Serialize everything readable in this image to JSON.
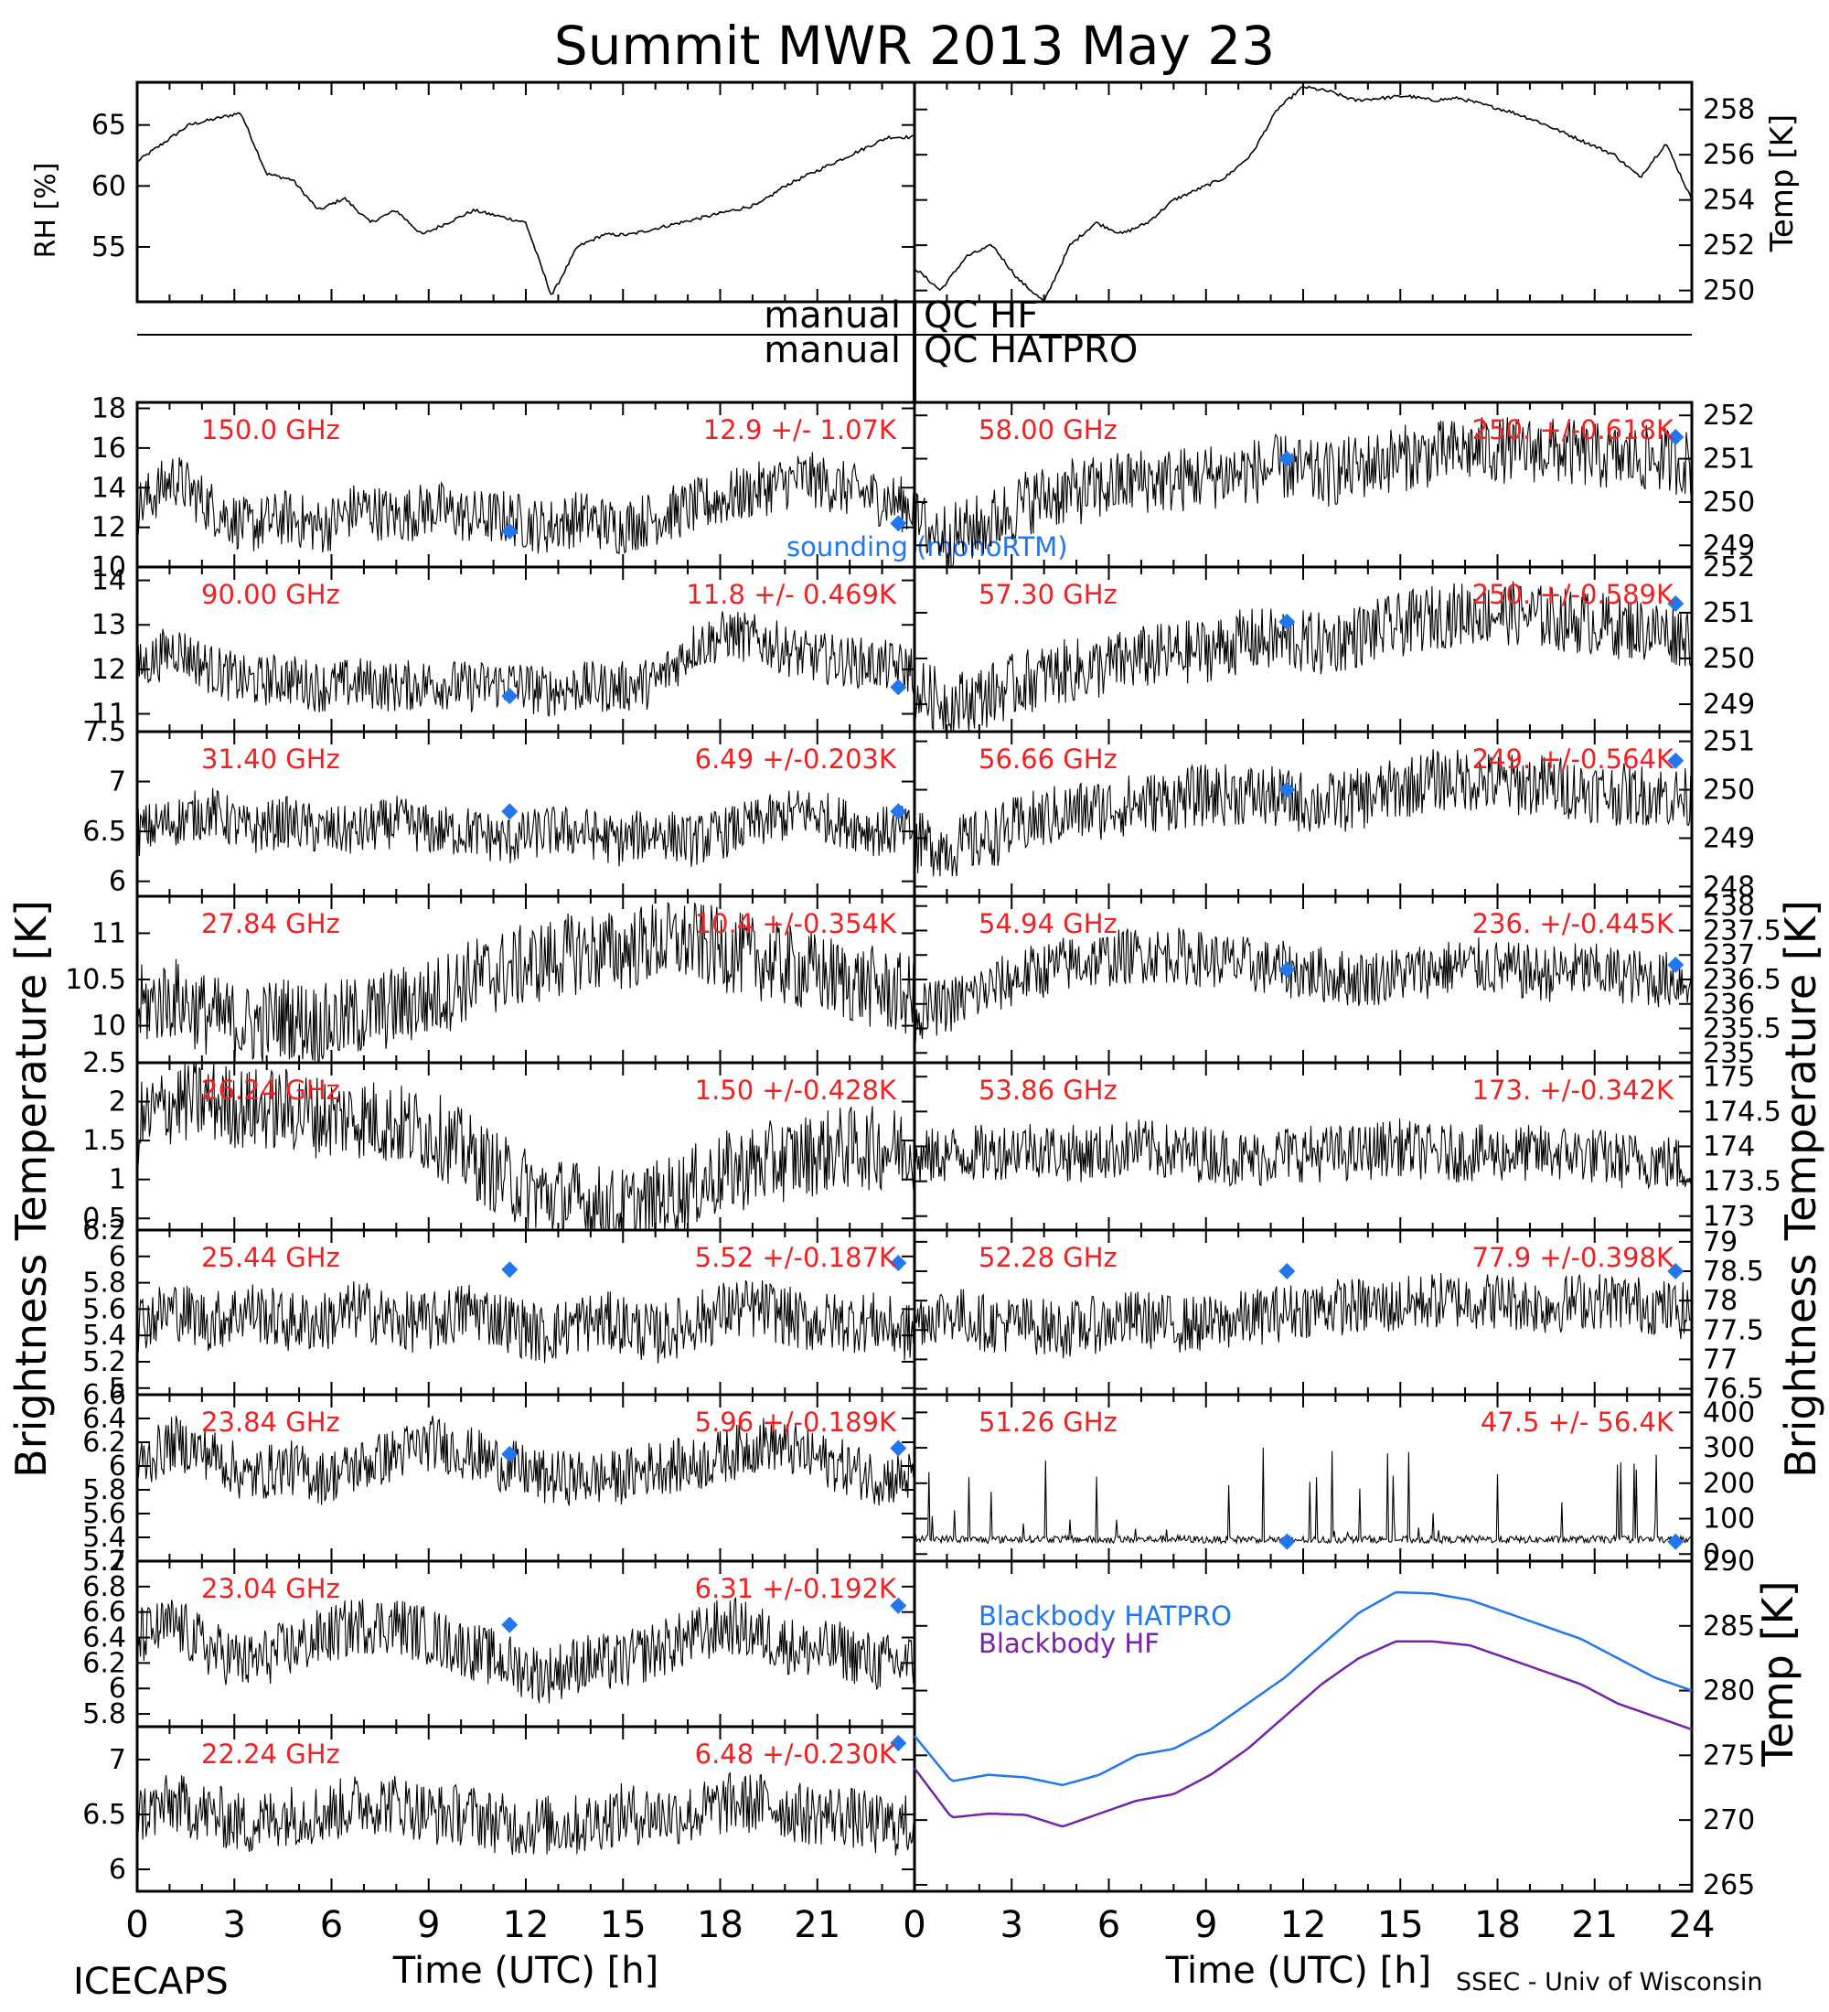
{
  "title": "Summit MWR 2013 May 23",
  "left_ylabel": "Brightness Temperature [K]",
  "right_ylabel": "Brightness Temperature [K]",
  "xlabel": "Time (UTC) [h]",
  "footer_left": "ICECAPS",
  "footer_right": "SSEC - Univ of Wisconsin",
  "qc_labels": [
    {
      "left": "manual",
      "right": "QC HF"
    },
    {
      "left": "manual",
      "right": "QC HATPRO"
    }
  ],
  "x_ticks": [
    "0",
    "3",
    "6",
    "9",
    "12",
    "15",
    "18",
    "21",
    "24"
  ],
  "x_ticks_left": [
    "0",
    "3",
    "6",
    "9",
    "12",
    "15",
    "18",
    "21"
  ],
  "colors": {
    "red": "#ee2222",
    "blue": "#2277ee",
    "purple": "#7722aa",
    "data": "#000000"
  },
  "chart_data": [
    {
      "type": "line",
      "id": "rh",
      "ylabel": "RH [%]",
      "ylim": [
        50.5,
        68.5
      ],
      "yticks": [
        55,
        60,
        65
      ],
      "series": [
        {
          "values": [
            62,
            63.5,
            65,
            65.5,
            66,
            61,
            60.5,
            58,
            59,
            57,
            58,
            56,
            57,
            58,
            57.5,
            57,
            51,
            55,
            56,
            56,
            56.5,
            57,
            57.5,
            58,
            58.5,
            60,
            61,
            62,
            63,
            64,
            64
          ]
        }
      ]
    },
    {
      "type": "line",
      "id": "temp",
      "ylabel": "Temp [K]",
      "ylim": [
        249.5,
        259.2
      ],
      "yticks": [
        250,
        252,
        254,
        256,
        258
      ],
      "series": [
        {
          "values": [
            251,
            250,
            251.5,
            252,
            250.5,
            249.5,
            252,
            253,
            252.5,
            253,
            254,
            254.5,
            255,
            256,
            258,
            259,
            258.8,
            258.4,
            258.5,
            258.6,
            258.4,
            258.5,
            258.2,
            257.9,
            257.5,
            257,
            256.5,
            256,
            255,
            256.5,
            254
          ]
        }
      ]
    },
    {
      "type": "line",
      "id": "ch150",
      "freq": "150.0 GHz",
      "stats": "12.9 +/- 1.07K",
      "ylim": [
        10,
        18.3
      ],
      "yticks": [
        10,
        12,
        14,
        16,
        18
      ],
      "noise": 1.1,
      "series": [
        {
          "values": [
            13,
            14.5,
            13,
            12,
            12.5,
            12,
            13,
            12.5,
            13,
            12.5,
            12.5,
            12,
            12.5,
            12,
            12.5,
            13,
            13.5,
            14,
            14.5,
            14,
            13.5,
            13
          ]
        }
      ],
      "sounding": [
        [
          11.5,
          11.8
        ],
        [
          23.5,
          12.2
        ]
      ],
      "legend_text": "sounding (monoRTM)"
    },
    {
      "type": "line",
      "id": "ch90",
      "freq": "90.00 GHz",
      "stats": "11.8 +/- 0.469K",
      "ylim": [
        10.6,
        14.3
      ],
      "yticks": [
        11,
        12,
        13,
        14
      ],
      "noise": 0.45,
      "series": [
        {
          "values": [
            12,
            12.5,
            12,
            11.7,
            11.8,
            11.6,
            11.7,
            11.6,
            11.7,
            11.6,
            11.7,
            11.5,
            11.6,
            11.6,
            11.7,
            12.5,
            12.8,
            12.6,
            12.3,
            12.2,
            12.1,
            12
          ]
        }
      ],
      "sounding": [
        [
          11.5,
          11.4
        ],
        [
          23.5,
          11.6
        ]
      ]
    },
    {
      "type": "line",
      "id": "ch31",
      "freq": "31.40 GHz",
      "stats": "6.49 +/-0.203K",
      "ylim": [
        5.85,
        7.5
      ],
      "yticks": [
        6.0,
        6.5,
        7.0,
        7.5
      ],
      "noise": 0.2,
      "series": [
        {
          "values": [
            6.5,
            6.6,
            6.7,
            6.5,
            6.6,
            6.5,
            6.5,
            6.6,
            6.5,
            6.5,
            6.4,
            6.5,
            6.5,
            6.4,
            6.5,
            6.4,
            6.5,
            6.6,
            6.7,
            6.6,
            6.5,
            6.5
          ]
        }
      ],
      "sounding": [
        [
          11.5,
          6.7
        ],
        [
          23.5,
          6.7
        ]
      ]
    },
    {
      "type": "line",
      "id": "ch27",
      "freq": "27.84 GHz",
      "stats": "10.4 +/-0.354K",
      "ylim": [
        9.6,
        11.4
      ],
      "yticks": [
        10.0,
        10.5,
        11.0
      ],
      "noise": 0.35,
      "series": [
        {
          "values": [
            10.2,
            10.3,
            10.1,
            10,
            10.1,
            10,
            10.1,
            10.2,
            10.3,
            10.5,
            10.6,
            10.7,
            10.8,
            10.8,
            10.9,
            10.9,
            10.8,
            10.7,
            10.6,
            10.5,
            10.4,
            10.3
          ]
        }
      ]
    },
    {
      "type": "line",
      "id": "ch26",
      "freq": "26.24 GHz",
      "stats": "1.50 +/-0.428K",
      "ylim": [
        0.35,
        2.5
      ],
      "yticks": [
        0.5,
        1.0,
        1.5,
        2.0,
        2.5
      ],
      "noise": 0.42,
      "series": [
        {
          "values": [
            1.7,
            2.0,
            2.0,
            1.9,
            1.9,
            1.8,
            1.8,
            1.7,
            1.6,
            1.3,
            1.0,
            0.8,
            0.7,
            0.6,
            0.7,
            0.9,
            1.1,
            1.2,
            1.3,
            1.4,
            1.4,
            1.4
          ]
        }
      ]
    },
    {
      "type": "line",
      "id": "ch25",
      "freq": "25.44 GHz",
      "stats": "5.52 +/-0.187K",
      "ylim": [
        4.95,
        6.2
      ],
      "yticks": [
        5.0,
        5.2,
        5.4,
        5.6,
        5.8,
        6.0,
        6.2
      ],
      "noise": 0.18,
      "series": [
        {
          "values": [
            5.5,
            5.6,
            5.5,
            5.6,
            5.5,
            5.5,
            5.6,
            5.5,
            5.5,
            5.6,
            5.5,
            5.4,
            5.5,
            5.5,
            5.4,
            5.5,
            5.6,
            5.6,
            5.5,
            5.5,
            5.5,
            5.4
          ]
        }
      ],
      "sounding": [
        [
          11.5,
          5.9
        ],
        [
          23.5,
          5.95
        ]
      ]
    },
    {
      "type": "line",
      "id": "ch23a",
      "freq": "23.84 GHz",
      "stats": "5.96 +/-0.189K",
      "ylim": [
        5.2,
        6.6
      ],
      "yticks": [
        5.2,
        5.4,
        5.6,
        5.8,
        6.0,
        6.2,
        6.4,
        6.6
      ],
      "noise": 0.18,
      "series": [
        {
          "values": [
            6.0,
            6.2,
            6.1,
            5.9,
            6.0,
            5.9,
            6.0,
            6.1,
            6.2,
            6.1,
            6.0,
            5.9,
            5.9,
            5.9,
            6.0,
            6.0,
            6.1,
            6.2,
            6.1,
            6.0,
            5.9,
            5.9
          ]
        }
      ],
      "sounding": [
        [
          11.5,
          6.1
        ],
        [
          23.5,
          6.15
        ]
      ]
    },
    {
      "type": "line",
      "id": "ch23b",
      "freq": "23.04 GHz",
      "stats": "6.31 +/-0.192K",
      "ylim": [
        5.7,
        7.0
      ],
      "yticks": [
        5.8,
        6.0,
        6.2,
        6.4,
        6.6,
        6.8,
        7.0
      ],
      "noise": 0.18,
      "series": [
        {
          "values": [
            6.4,
            6.5,
            6.3,
            6.2,
            6.3,
            6.4,
            6.5,
            6.5,
            6.4,
            6.3,
            6.2,
            6.1,
            6.2,
            6.2,
            6.3,
            6.4,
            6.5,
            6.4,
            6.3,
            6.3,
            6.2,
            6.2
          ]
        }
      ],
      "sounding": [
        [
          11.5,
          6.5
        ],
        [
          23.5,
          6.65
        ]
      ]
    },
    {
      "type": "line",
      "id": "ch22",
      "freq": "22.24 GHz",
      "stats": "6.48 +/-0.230K",
      "ylim": [
        5.8,
        7.3
      ],
      "yticks": [
        6.0,
        6.5,
        7.0
      ],
      "noise": 0.22,
      "series": [
        {
          "values": [
            6.5,
            6.6,
            6.5,
            6.4,
            6.5,
            6.5,
            6.6,
            6.6,
            6.5,
            6.5,
            6.4,
            6.4,
            6.4,
            6.5,
            6.5,
            6.5,
            6.6,
            6.6,
            6.5,
            6.5,
            6.4,
            6.4
          ]
        }
      ],
      "sounding": [
        [
          23.5,
          7.15
        ]
      ]
    },
    {
      "type": "line",
      "id": "ch58",
      "freq": "58.00 GHz",
      "stats": "250. +/-0.618K",
      "ylim": [
        248.5,
        252.3
      ],
      "yticks": [
        249,
        250,
        251,
        252
      ],
      "noise": 0.6,
      "series": [
        {
          "values": [
            249.5,
            249.2,
            249.5,
            250,
            250.2,
            250.3,
            250.5,
            250.5,
            250.6,
            250.7,
            250.8,
            250.6,
            250.8,
            251,
            251.1,
            251.2,
            251.2,
            251.2,
            251.1,
            251,
            251,
            250.9
          ]
        }
      ],
      "sounding": [
        [
          11.5,
          251
        ],
        [
          23.5,
          251.5
        ]
      ]
    },
    {
      "type": "line",
      "id": "ch57",
      "freq": "57.30 GHz",
      "stats": "250. +/-0.589K",
      "ylim": [
        248.4,
        252
      ],
      "yticks": [
        249,
        250,
        251,
        252
      ],
      "noise": 0.55,
      "series": [
        {
          "values": [
            249.3,
            249,
            249.2,
            249.5,
            249.7,
            249.8,
            250,
            250.1,
            250.2,
            250.4,
            250.4,
            250.3,
            250.5,
            250.7,
            250.9,
            251,
            251,
            250.9,
            250.8,
            250.7,
            250.6,
            250.5
          ]
        }
      ],
      "sounding": [
        [
          11.5,
          250.8
        ],
        [
          23.5,
          251.2
        ]
      ]
    },
    {
      "type": "line",
      "id": "ch56",
      "freq": "56.66 GHz",
      "stats": "249. +/-0.564K",
      "ylim": [
        247.8,
        251.2
      ],
      "yticks": [
        248,
        249,
        250,
        251
      ],
      "noise": 0.5,
      "series": [
        {
          "values": [
            248.9,
            248.8,
            249,
            249.3,
            249.5,
            249.6,
            249.7,
            249.8,
            249.9,
            249.9,
            249.8,
            249.7,
            249.8,
            250,
            250.2,
            250.2,
            250.1,
            250.1,
            250,
            249.9,
            249.9,
            249.8
          ]
        }
      ],
      "sounding": [
        [
          11.5,
          250
        ],
        [
          23.5,
          250.6
        ]
      ]
    },
    {
      "type": "line",
      "id": "ch54",
      "freq": "54.94 GHz",
      "stats": "236. +/-0.445K",
      "ylim": [
        234.8,
        238.2
      ],
      "yticks": [
        235.0,
        235.5,
        236.0,
        236.5,
        237.0,
        237.5,
        238.0
      ],
      "noise": 0.45,
      "series": [
        {
          "values": [
            235.8,
            236,
            236.3,
            236.6,
            236.8,
            236.9,
            237,
            237,
            236.9,
            236.8,
            236.7,
            236.6,
            236.5,
            236.6,
            236.7,
            236.8,
            236.7,
            236.6,
            236.7,
            236.6,
            236.5,
            236.5
          ]
        }
      ],
      "sounding": [
        [
          11.5,
          236.7
        ],
        [
          23.5,
          236.8
        ]
      ]
    },
    {
      "type": "line",
      "id": "ch53",
      "freq": "53.86 GHz",
      "stats": "173. +/-0.342K",
      "ylim": [
        172.8,
        175.2
      ],
      "yticks": [
        173.0,
        173.5,
        174.0,
        174.5,
        175.0
      ],
      "noise": 0.32,
      "series": [
        {
          "values": [
            173.8,
            173.9,
            173.9,
            174,
            173.9,
            173.9,
            174,
            173.9,
            173.9,
            173.8,
            173.9,
            173.9,
            173.9,
            174,
            173.9,
            173.9,
            173.9,
            173.9,
            173.9,
            173.8,
            173.8,
            173.7
          ]
        }
      ]
    },
    {
      "type": "line",
      "id": "ch52",
      "freq": "52.28 GHz",
      "stats": "77.9 +/-0.398K",
      "ylim": [
        76.4,
        79.2
      ],
      "yticks": [
        76.5,
        77.0,
        77.5,
        78.0,
        78.5,
        79.0
      ],
      "noise": 0.38,
      "series": [
        {
          "values": [
            77.7,
            77.8,
            77.6,
            77.6,
            77.5,
            77.6,
            77.7,
            77.6,
            77.6,
            77.7,
            77.8,
            77.9,
            77.9,
            77.9,
            78,
            78,
            78,
            77.9,
            78,
            78,
            77.9,
            77.8
          ]
        }
      ],
      "sounding": [
        [
          11.5,
          78.5
        ],
        [
          23.5,
          78.5
        ]
      ]
    },
    {
      "type": "line",
      "id": "ch51",
      "freq": "51.26 GHz",
      "stats": "47.5 +/- 56.4K",
      "ylim": [
        -20,
        450
      ],
      "yticks": [
        0,
        100,
        200,
        300,
        400
      ],
      "noise": 8,
      "series": [
        {
          "values": [
            45,
            42,
            40,
            43,
            42,
            40,
            41,
            43,
            40,
            42,
            41,
            40,
            42,
            41,
            40,
            42,
            41,
            40,
            41,
            42,
            41,
            40
          ]
        }
      ],
      "sounding": [
        [
          11.5,
          35
        ],
        [
          23.5,
          35
        ]
      ]
    },
    {
      "type": "line",
      "id": "bb",
      "ylabel": "Temp [K]",
      "ylim": [
        264.5,
        290
      ],
      "yticks": [
        265,
        270,
        275,
        280,
        285,
        290
      ],
      "legend": [
        {
          "name": "Blackbody HATPRO",
          "color": "#2277ee"
        },
        {
          "name": "Blackbody HF",
          "color": "#7722aa"
        }
      ],
      "series": [
        {
          "name": "Blackbody HATPRO",
          "values": [
            276.5,
            273,
            273.5,
            273.3,
            272.7,
            273.5,
            275,
            275.5,
            277,
            279,
            281,
            283.5,
            286,
            287.6,
            287.5,
            287,
            286,
            285,
            284,
            282.5,
            281,
            280
          ]
        },
        {
          "name": "Blackbody HF",
          "values": [
            274,
            270.2,
            270.5,
            270.4,
            269.5,
            270.5,
            271.5,
            272,
            273.5,
            275.5,
            278,
            280.5,
            282.5,
            283.8,
            283.8,
            283.5,
            282.5,
            281.5,
            280.5,
            279,
            278,
            277
          ]
        }
      ]
    }
  ]
}
